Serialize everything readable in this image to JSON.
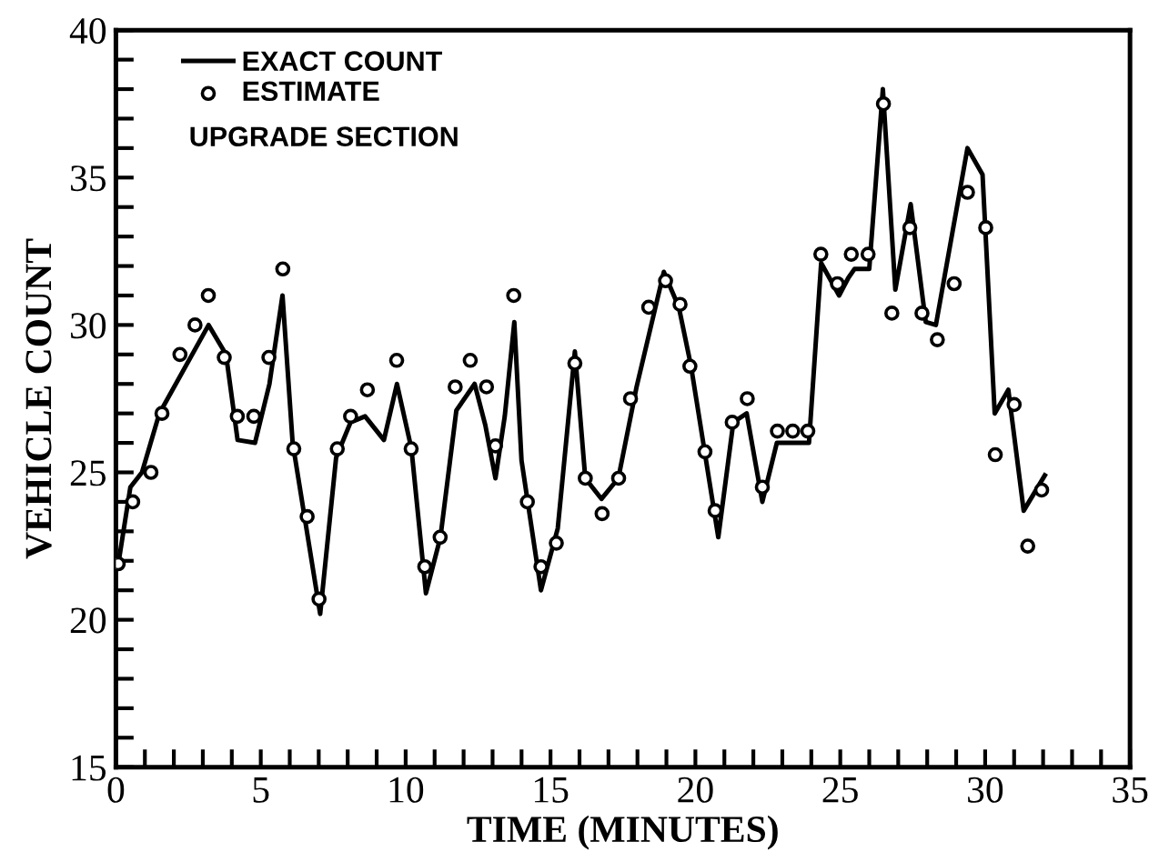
{
  "chart_data": {
    "type": "line",
    "xlabel": "TIME (MINUTES)",
    "ylabel": "VEHICLE COUNT",
    "xlim": [
      0,
      35
    ],
    "ylim": [
      15,
      40
    ],
    "xticks": [
      0,
      {
        "value": 1,
        "label": null
      },
      {
        "value": 2,
        "label": null
      },
      {
        "value": 3,
        "label": null
      },
      {
        "value": 4,
        "label": null
      },
      5,
      {
        "value": 6,
        "label": null
      },
      {
        "value": 7,
        "label": null
      },
      {
        "value": 8,
        "label": null
      },
      {
        "value": 9,
        "label": null
      },
      10,
      {
        "value": 11,
        "label": null
      },
      {
        "value": 12,
        "label": null
      },
      {
        "value": 13,
        "label": null
      },
      {
        "value": 14,
        "label": null
      },
      15,
      {
        "value": 16,
        "label": null
      },
      {
        "value": 17,
        "label": null
      },
      {
        "value": 18,
        "label": null
      },
      {
        "value": 19,
        "label": null
      },
      20,
      {
        "value": 21,
        "label": null
      },
      {
        "value": 22,
        "label": null
      },
      {
        "value": 23,
        "label": null
      },
      {
        "value": 24,
        "label": null
      },
      25,
      {
        "value": 26,
        "label": null
      },
      {
        "value": 27,
        "label": null
      },
      {
        "value": 28,
        "label": null
      },
      {
        "value": 29,
        "label": null
      },
      30,
      {
        "value": 31,
        "label": null
      },
      {
        "value": 32,
        "label": null
      },
      {
        "value": 33,
        "label": null
      },
      {
        "value": 34,
        "label": null
      },
      35
    ],
    "yticks": [
      15,
      {
        "value": 16,
        "label": null
      },
      {
        "value": 17,
        "label": null
      },
      {
        "value": 18,
        "label": null
      },
      {
        "value": 19,
        "label": null
      },
      20,
      {
        "value": 21,
        "label": null
      },
      {
        "value": 22,
        "label": null
      },
      {
        "value": 23,
        "label": null
      },
      {
        "value": 24,
        "label": null
      },
      25,
      {
        "value": 26,
        "label": null
      },
      {
        "value": 27,
        "label": null
      },
      {
        "value": 28,
        "label": null
      },
      {
        "value": 29,
        "label": null
      },
      30,
      {
        "value": 31,
        "label": null
      },
      {
        "value": 32,
        "label": null
      },
      {
        "value": 33,
        "label": null
      },
      {
        "value": 34,
        "label": null
      },
      35,
      {
        "value": 36,
        "label": null
      },
      {
        "value": 37,
        "label": null
      },
      {
        "value": 38,
        "label": null
      },
      {
        "value": 39,
        "label": null
      },
      40
    ],
    "grid": false,
    "legend": "top left",
    "annotations": [
      "UPGRADE SECTION"
    ],
    "series": [
      {
        "name": "EXACT COUNT",
        "color": "#000000",
        "marker": "none",
        "line_style": "solid",
        "x": [
          0.1,
          0.5,
          0.9,
          1.5,
          3.2,
          3.8,
          4.2,
          4.8,
          5.3,
          5.75,
          6.1,
          7.05,
          7.6,
          8.1,
          8.6,
          9.25,
          9.7,
          10.2,
          10.7,
          11.2,
          11.75,
          12.38,
          12.75,
          13.1,
          13.42,
          13.75,
          14.0,
          14.67,
          15.25,
          15.84,
          16.2,
          16.76,
          17.34,
          17.97,
          18.91,
          19.43,
          19.85,
          20.79,
          21.31,
          21.77,
          22.31,
          22.81,
          23.92,
          24.34,
          24.96,
          25.28,
          25.49,
          26.0,
          26.47,
          26.9,
          27.43,
          27.95,
          28.3,
          29.39,
          29.91,
          30.33,
          30.8,
          31.33,
          32.06
        ],
        "values": [
          22,
          24.5,
          25,
          27,
          30,
          29,
          26.1,
          26,
          28,
          31,
          26,
          20.2,
          25.5,
          26.7,
          26.9,
          26.1,
          28,
          25.8,
          20.9,
          22.8,
          27.1,
          28,
          26.6,
          24.8,
          26.9,
          30.1,
          25.4,
          21,
          23.1,
          29.1,
          24.8,
          24.1,
          24.8,
          27.9,
          31.8,
          30.6,
          28.6,
          22.8,
          26.7,
          27,
          24,
          26,
          26,
          32.1,
          31,
          31.6,
          31.9,
          31.9,
          38,
          31.2,
          34.1,
          30.1,
          30,
          36,
          35.1,
          27,
          27.8,
          23.7,
          24.9
        ]
      },
      {
        "name": "ESTIMATE",
        "type": "scatter",
        "color": "#000000",
        "marker": "circle",
        "x": [
          0.08,
          0.58,
          1.21,
          1.59,
          2.21,
          2.73,
          3.19,
          3.74,
          4.19,
          4.76,
          5.28,
          5.76,
          6.14,
          6.6,
          7.01,
          7.64,
          8.1,
          8.68,
          9.69,
          10.19,
          10.66,
          11.19,
          11.71,
          12.23,
          12.79,
          13.1,
          13.73,
          14.2,
          14.67,
          15.2,
          15.84,
          16.2,
          16.78,
          17.35,
          17.76,
          18.39,
          18.97,
          19.47,
          19.81,
          20.33,
          20.68,
          21.27,
          21.79,
          22.31,
          22.83,
          23.36,
          23.88,
          24.33,
          24.9,
          25.38,
          25.96,
          26.49,
          26.78,
          27.4,
          27.82,
          28.35,
          28.93,
          29.39,
          30.02,
          30.35,
          31.0,
          31.47,
          31.95
        ],
        "values": [
          21.9,
          24,
          25,
          27,
          29,
          30,
          31,
          28.9,
          26.9,
          26.9,
          28.9,
          31.9,
          25.8,
          23.5,
          20.7,
          25.8,
          26.9,
          27.8,
          28.8,
          25.8,
          21.8,
          22.8,
          27.9,
          28.8,
          27.9,
          25.9,
          31,
          24,
          21.8,
          22.6,
          28.7,
          24.8,
          23.6,
          24.8,
          27.5,
          30.6,
          31.5,
          30.7,
          28.6,
          25.7,
          23.7,
          26.7,
          27.5,
          24.5,
          26.4,
          26.4,
          26.4,
          32.4,
          31.4,
          32.4,
          32.4,
          37.5,
          30.4,
          33.3,
          30.4,
          29.5,
          31.4,
          34.5,
          33.3,
          25.6,
          27.3,
          22.5,
          24.4
        ]
      }
    ]
  }
}
